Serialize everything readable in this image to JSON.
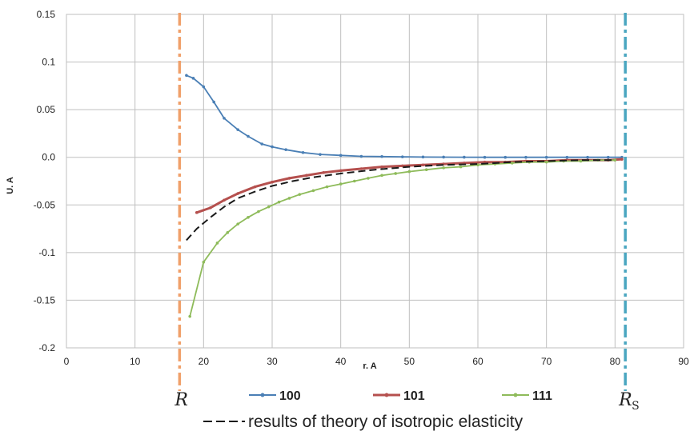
{
  "chart_data": {
    "type": "line",
    "title": "",
    "xlabel": "r. A",
    "ylabel": "U. A",
    "xlim": [
      0,
      90
    ],
    "ylim": [
      -0.2,
      0.15
    ],
    "x_ticks": [
      0,
      10,
      20,
      30,
      40,
      50,
      60,
      70,
      80,
      90
    ],
    "y_ticks": [
      0.15,
      0.1,
      0.05,
      0.0,
      -0.05,
      -0.1,
      -0.15,
      -0.2
    ],
    "y_tick_labels": [
      "0.15",
      "0.1",
      "0.05",
      "0.0",
      "-0.05",
      "-0.1",
      "-0.15",
      "-0.2"
    ],
    "grid": true,
    "series": [
      {
        "name": "100",
        "color": "#4a7fb5",
        "marker": "dot",
        "points": [
          [
            17.5,
            0.086
          ],
          [
            18.5,
            0.083
          ],
          [
            20,
            0.074
          ],
          [
            21.5,
            0.058
          ],
          [
            23,
            0.041
          ],
          [
            25,
            0.029
          ],
          [
            26.5,
            0.022
          ],
          [
            28.5,
            0.014
          ],
          [
            30,
            0.011
          ],
          [
            32,
            0.008
          ],
          [
            34.5,
            0.005
          ],
          [
            37,
            0.003
          ],
          [
            40,
            0.002
          ],
          [
            43,
            0.001
          ],
          [
            46,
            0.0008
          ],
          [
            49,
            0.0005
          ],
          [
            52,
            0.0003
          ],
          [
            55,
            0.0002
          ],
          [
            58,
            0.0001
          ],
          [
            61,
            0.0
          ],
          [
            64,
            0.0
          ],
          [
            67,
            0.0
          ],
          [
            70,
            0.0
          ],
          [
            73,
            0.0
          ],
          [
            76,
            0.0
          ],
          [
            79,
            0.0
          ],
          [
            81,
            0.0
          ]
        ]
      },
      {
        "name": "101",
        "color": "#b5504e",
        "marker": "dot",
        "points": [
          [
            19,
            -0.058
          ],
          [
            21,
            -0.053
          ],
          [
            23,
            -0.045
          ],
          [
            25,
            -0.038
          ],
          [
            27.5,
            -0.031
          ],
          [
            30,
            -0.026
          ],
          [
            32.5,
            -0.022
          ],
          [
            35,
            -0.019
          ],
          [
            37.5,
            -0.016
          ],
          [
            40,
            -0.014
          ],
          [
            43,
            -0.012
          ],
          [
            46,
            -0.01
          ],
          [
            49,
            -0.009
          ],
          [
            52,
            -0.008
          ],
          [
            55,
            -0.007
          ],
          [
            58,
            -0.006
          ],
          [
            61,
            -0.005
          ],
          [
            64,
            -0.005
          ],
          [
            67,
            -0.004
          ],
          [
            70,
            -0.004
          ],
          [
            73,
            -0.003
          ],
          [
            76,
            -0.003
          ],
          [
            79,
            -0.003
          ],
          [
            81,
            -0.002
          ]
        ]
      },
      {
        "name": "111",
        "color": "#8ebb5a",
        "marker": "dot",
        "points": [
          [
            18,
            -0.167
          ],
          [
            20,
            -0.11
          ],
          [
            22,
            -0.09
          ],
          [
            23.5,
            -0.079
          ],
          [
            25,
            -0.07
          ],
          [
            26.5,
            -0.063
          ],
          [
            28,
            -0.057
          ],
          [
            29.5,
            -0.052
          ],
          [
            31,
            -0.047
          ],
          [
            32.5,
            -0.043
          ],
          [
            34,
            -0.039
          ],
          [
            36,
            -0.035
          ],
          [
            38,
            -0.031
          ],
          [
            40,
            -0.028
          ],
          [
            42,
            -0.025
          ],
          [
            44,
            -0.022
          ],
          [
            46,
            -0.019
          ],
          [
            48,
            -0.017
          ],
          [
            50,
            -0.015
          ],
          [
            52.5,
            -0.013
          ],
          [
            55,
            -0.011
          ],
          [
            57.5,
            -0.01
          ],
          [
            60,
            -0.008
          ],
          [
            62.5,
            -0.007
          ],
          [
            65,
            -0.006
          ],
          [
            67.5,
            -0.005
          ],
          [
            70,
            -0.005
          ],
          [
            72.5,
            -0.004
          ],
          [
            75,
            -0.004
          ],
          [
            77.5,
            -0.003
          ],
          [
            80,
            -0.003
          ]
        ]
      },
      {
        "name": "results of theory of isotropic elasticity",
        "color": "#1a1a1a",
        "dashed": true,
        "points": [
          [
            17.5,
            -0.087
          ],
          [
            19,
            -0.075
          ],
          [
            21,
            -0.063
          ],
          [
            23,
            -0.052
          ],
          [
            25,
            -0.043
          ],
          [
            27.5,
            -0.036
          ],
          [
            30,
            -0.03
          ],
          [
            33,
            -0.025
          ],
          [
            36,
            -0.021
          ],
          [
            40,
            -0.017
          ],
          [
            45,
            -0.013
          ],
          [
            50,
            -0.01
          ],
          [
            55,
            -0.008
          ],
          [
            60,
            -0.007
          ],
          [
            65,
            -0.005
          ],
          [
            70,
            -0.004
          ],
          [
            75,
            -0.003
          ],
          [
            80,
            -0.003
          ]
        ]
      }
    ],
    "boundaries": [
      {
        "label": "R",
        "subscript": "",
        "x": 16.5,
        "color": "#f0a06a"
      },
      {
        "label": "R",
        "subscript": "S",
        "x": 81.5,
        "color": "#4aa6c0"
      }
    ],
    "legend": {
      "placement": "bottom",
      "entries": [
        "100",
        "101",
        "111"
      ],
      "extra": "results of theory of isotropic elasticity"
    }
  }
}
